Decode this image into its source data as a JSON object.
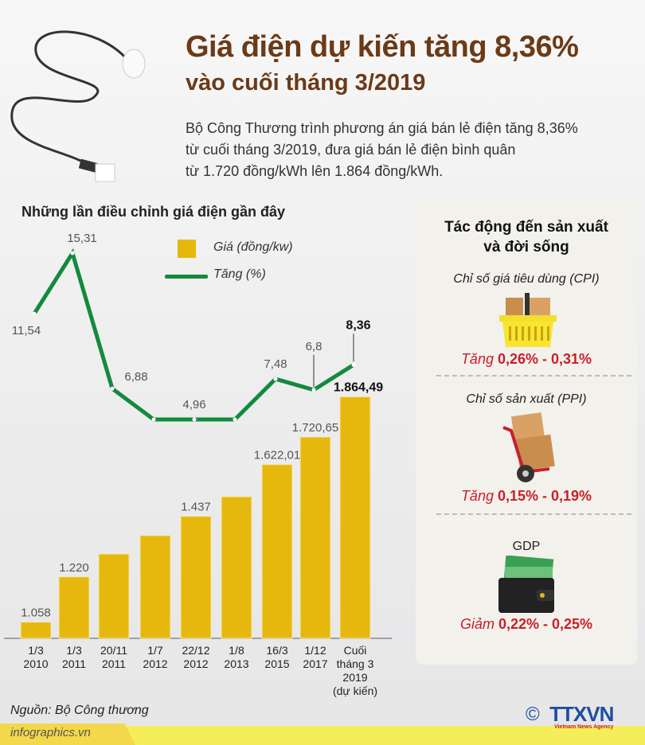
{
  "header": {
    "title_line1": "Giá điện dự kiến tăng 8,36%",
    "title_line2": "vào cuối tháng 3/2019",
    "intro_lines": [
      "Bộ Công Thương trình phương án giá bán lẻ điện tăng 8,36%",
      "từ cuối tháng 3/2019, đưa giá bán lẻ điện bình quân",
      "từ 1.720 đồng/kWh lên 1.864 đồng/kWh."
    ]
  },
  "chart_data": {
    "type": "bar+line",
    "title": "Những lần điều chỉnh giá điện gần đây",
    "categories": [
      [
        "1/3",
        "2010"
      ],
      [
        "1/3",
        "2011"
      ],
      [
        "20/11",
        "2011"
      ],
      [
        "1/7",
        "2012"
      ],
      [
        "22/12",
        "2012"
      ],
      [
        "1/8",
        "2013"
      ],
      [
        "16/3",
        "2015"
      ],
      [
        "1/12",
        "2017"
      ],
      [
        "Cuối",
        "tháng 3",
        "2019",
        "(dự kiến)"
      ]
    ],
    "series": [
      {
        "name": "Giá (đồng/kw)",
        "type": "bar",
        "color": "#e6b80e",
        "values": [
          1058,
          1220,
          1302,
          1368,
          1437,
          1507,
          1622.01,
          1720.65,
          1864.49
        ],
        "labels": [
          "1.058",
          "1.220",
          "",
          "",
          "1.437",
          "",
          "1.622,01",
          "1.720,65",
          "1.864,49"
        ]
      },
      {
        "name": "Tăng (%)",
        "type": "line",
        "color": "#138a3e",
        "values": [
          11.54,
          15.31,
          6.88,
          4.96,
          4.96,
          4.96,
          7.48,
          6.8,
          8.36
        ],
        "labels": [
          "11,54",
          "15,31",
          "6,88",
          "",
          "4,96",
          "",
          "7,48",
          "6,8",
          "8,36"
        ]
      }
    ],
    "bar_ylim": [
      1000,
      1900
    ],
    "line_ylim": [
      4.96,
      15.31
    ],
    "grid": false,
    "legend": "top-center"
  },
  "panel": {
    "title_line1": "Tác động đến sản xuất",
    "title_line2": "và đời sống",
    "items": [
      {
        "label": "Chỉ số giá tiêu dùng (CPI)",
        "icon": "basket-icon",
        "verb": "Tăng",
        "range": "0,26% - 0,31%"
      },
      {
        "label": "Chỉ số sản xuất (PPI)",
        "icon": "hand-truck-icon",
        "verb": "Tăng",
        "range": "0,15% - 0,19%"
      },
      {
        "label": "GDP",
        "icon": "wallet-icon",
        "verb": "Giảm",
        "range": "0,22% - 0,25%"
      }
    ]
  },
  "footer": {
    "source": "Nguồn: Bộ Công thương",
    "site": "infographics.vn",
    "logo": "TTXVN",
    "logo_sub": "Vietnam News Agency",
    "copyright": "©"
  },
  "colors": {
    "title": "#6b3a17",
    "bar": "#e6b80e",
    "line": "#138a3e",
    "impact": "#c8202a",
    "logo": "#1d4fa3"
  }
}
